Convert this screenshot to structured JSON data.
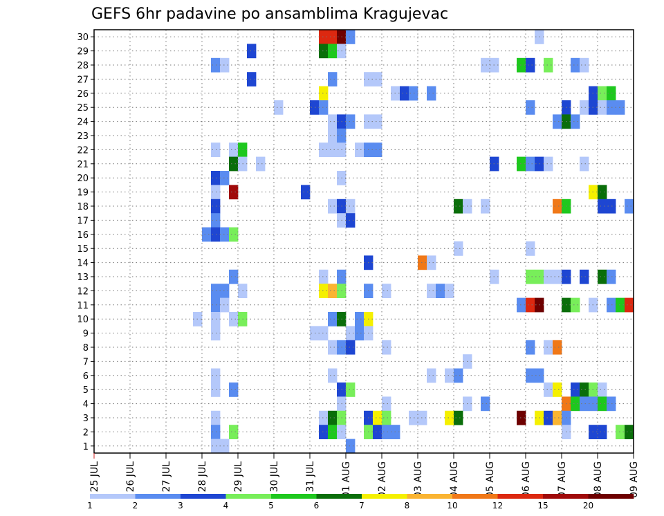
{
  "chart_data": {
    "type": "heatmap",
    "title": "GEFS 6hr padavine po ansamblima Kragujevac",
    "x_tick_labels": [
      "25 JUL",
      "26 JUL",
      "27 JUL",
      "28 JUL",
      "29 JUL",
      "30 JUL",
      "31 JUL",
      "01 AUG",
      "02 AUG",
      "03 AUG",
      "04 AUG",
      "05 AUG",
      "06 AUG",
      "07 AUG",
      "08 AUG",
      "09 AUG"
    ],
    "y_tick_labels": [
      "1",
      "2",
      "3",
      "4",
      "5",
      "6",
      "7",
      "8",
      "9",
      "10",
      "11",
      "12",
      "13",
      "14",
      "15",
      "16",
      "17",
      "18",
      "19",
      "20",
      "21",
      "22",
      "23",
      "24",
      "25",
      "26",
      "27",
      "28",
      "29",
      "30"
    ],
    "x_range_days": [
      0,
      15
    ],
    "y_range_members": [
      0,
      30
    ],
    "steps_per_day": 4,
    "grid": true,
    "colorbar": {
      "labels": [
        "1",
        "2",
        "3",
        "4",
        "5",
        "6",
        "7",
        "8",
        "10",
        "12",
        "15",
        "20"
      ],
      "colors": [
        "#b4c8fa",
        "#5a8cf0",
        "#1e46d2",
        "#78ee5a",
        "#1ec81e",
        "#0a6e0a",
        "#f5f000",
        "#fab432",
        "#f07818",
        "#dc2810",
        "#a00a0a",
        "#6e0000"
      ]
    },
    "cells": [
      {
        "m": 30,
        "t": 25,
        "c": 9
      },
      {
        "m": 30,
        "t": 26,
        "c": 9
      },
      {
        "m": 30,
        "t": 27,
        "c": 11
      },
      {
        "m": 30,
        "t": 28,
        "c": 1
      },
      {
        "m": 30,
        "t": 49,
        "c": 0
      },
      {
        "m": 29,
        "t": 17,
        "c": 2
      },
      {
        "m": 29,
        "t": 25,
        "c": 5
      },
      {
        "m": 29,
        "t": 26,
        "c": 4
      },
      {
        "m": 29,
        "t": 27,
        "c": 0
      },
      {
        "m": 28,
        "t": 13,
        "c": 1
      },
      {
        "m": 28,
        "t": 14,
        "c": 0
      },
      {
        "m": 28,
        "t": 43,
        "c": 0
      },
      {
        "m": 28,
        "t": 44,
        "c": 0
      },
      {
        "m": 28,
        "t": 47,
        "c": 4
      },
      {
        "m": 28,
        "t": 48,
        "c": 2
      },
      {
        "m": 28,
        "t": 50,
        "c": 3
      },
      {
        "m": 28,
        "t": 53,
        "c": 1
      },
      {
        "m": 28,
        "t": 54,
        "c": 0
      },
      {
        "m": 27,
        "t": 17,
        "c": 2
      },
      {
        "m": 27,
        "t": 26,
        "c": 1
      },
      {
        "m": 27,
        "t": 30,
        "c": 0
      },
      {
        "m": 27,
        "t": 31,
        "c": 0
      },
      {
        "m": 26,
        "t": 25,
        "c": 6
      },
      {
        "m": 26,
        "t": 33,
        "c": 0
      },
      {
        "m": 26,
        "t": 34,
        "c": 2
      },
      {
        "m": 26,
        "t": 35,
        "c": 1
      },
      {
        "m": 26,
        "t": 37,
        "c": 1
      },
      {
        "m": 26,
        "t": 55,
        "c": 2
      },
      {
        "m": 26,
        "t": 56,
        "c": 3
      },
      {
        "m": 26,
        "t": 57,
        "c": 4
      },
      {
        "m": 25,
        "t": 20,
        "c": 0
      },
      {
        "m": 25,
        "t": 24,
        "c": 2
      },
      {
        "m": 25,
        "t": 25,
        "c": 1
      },
      {
        "m": 25,
        "t": 48,
        "c": 1
      },
      {
        "m": 25,
        "t": 52,
        "c": 2
      },
      {
        "m": 25,
        "t": 54,
        "c": 0
      },
      {
        "m": 25,
        "t": 55,
        "c": 2
      },
      {
        "m": 25,
        "t": 56,
        "c": 0
      },
      {
        "m": 25,
        "t": 57,
        "c": 1
      },
      {
        "m": 25,
        "t": 58,
        "c": 1
      },
      {
        "m": 24,
        "t": 26,
        "c": 0
      },
      {
        "m": 24,
        "t": 27,
        "c": 2
      },
      {
        "m": 24,
        "t": 28,
        "c": 1
      },
      {
        "m": 24,
        "t": 30,
        "c": 0
      },
      {
        "m": 24,
        "t": 31,
        "c": 0
      },
      {
        "m": 24,
        "t": 51,
        "c": 1
      },
      {
        "m": 24,
        "t": 52,
        "c": 5
      },
      {
        "m": 24,
        "t": 53,
        "c": 1
      },
      {
        "m": 23,
        "t": 26,
        "c": 0
      },
      {
        "m": 23,
        "t": 27,
        "c": 1
      },
      {
        "m": 22,
        "t": 13,
        "c": 0
      },
      {
        "m": 22,
        "t": 15,
        "c": 0
      },
      {
        "m": 22,
        "t": 16,
        "c": 4
      },
      {
        "m": 22,
        "t": 25,
        "c": 0
      },
      {
        "m": 22,
        "t": 26,
        "c": 0
      },
      {
        "m": 22,
        "t": 27,
        "c": 0
      },
      {
        "m": 22,
        "t": 29,
        "c": 0
      },
      {
        "m": 22,
        "t": 30,
        "c": 1
      },
      {
        "m": 22,
        "t": 31,
        "c": 1
      },
      {
        "m": 21,
        "t": 15,
        "c": 5
      },
      {
        "m": 21,
        "t": 16,
        "c": 0
      },
      {
        "m": 21,
        "t": 18,
        "c": 0
      },
      {
        "m": 21,
        "t": 44,
        "c": 2
      },
      {
        "m": 21,
        "t": 47,
        "c": 4
      },
      {
        "m": 21,
        "t": 48,
        "c": 1
      },
      {
        "m": 21,
        "t": 49,
        "c": 2
      },
      {
        "m": 21,
        "t": 50,
        "c": 0
      },
      {
        "m": 21,
        "t": 54,
        "c": 0
      },
      {
        "m": 20,
        "t": 13,
        "c": 2
      },
      {
        "m": 20,
        "t": 14,
        "c": 1
      },
      {
        "m": 20,
        "t": 27,
        "c": 0
      },
      {
        "m": 19,
        "t": 13,
        "c": 0
      },
      {
        "m": 19,
        "t": 15,
        "c": 10
      },
      {
        "m": 19,
        "t": 23,
        "c": 2
      },
      {
        "m": 19,
        "t": 55,
        "c": 6
      },
      {
        "m": 19,
        "t": 56,
        "c": 5
      },
      {
        "m": 18,
        "t": 13,
        "c": 2
      },
      {
        "m": 18,
        "t": 26,
        "c": 0
      },
      {
        "m": 18,
        "t": 27,
        "c": 2
      },
      {
        "m": 18,
        "t": 28,
        "c": 0
      },
      {
        "m": 18,
        "t": 40,
        "c": 5
      },
      {
        "m": 18,
        "t": 41,
        "c": 0
      },
      {
        "m": 18,
        "t": 43,
        "c": 0
      },
      {
        "m": 18,
        "t": 51,
        "c": 8
      },
      {
        "m": 18,
        "t": 52,
        "c": 4
      },
      {
        "m": 18,
        "t": 56,
        "c": 2
      },
      {
        "m": 18,
        "t": 57,
        "c": 2
      },
      {
        "m": 18,
        "t": 59,
        "c": 1
      },
      {
        "m": 17,
        "t": 13,
        "c": 1
      },
      {
        "m": 17,
        "t": 27,
        "c": 0
      },
      {
        "m": 17,
        "t": 28,
        "c": 2
      },
      {
        "m": 16,
        "t": 12,
        "c": 1
      },
      {
        "m": 16,
        "t": 13,
        "c": 2
      },
      {
        "m": 16,
        "t": 14,
        "c": 1
      },
      {
        "m": 16,
        "t": 15,
        "c": 3
      },
      {
        "m": 15,
        "t": 40,
        "c": 0
      },
      {
        "m": 15,
        "t": 48,
        "c": 0
      },
      {
        "m": 14,
        "t": 30,
        "c": 2
      },
      {
        "m": 14,
        "t": 36,
        "c": 8
      },
      {
        "m": 14,
        "t": 37,
        "c": 0
      },
      {
        "m": 13,
        "t": 15,
        "c": 1
      },
      {
        "m": 13,
        "t": 25,
        "c": 0
      },
      {
        "m": 13,
        "t": 27,
        "c": 1
      },
      {
        "m": 13,
        "t": 44,
        "c": 0
      },
      {
        "m": 13,
        "t": 48,
        "c": 3
      },
      {
        "m": 13,
        "t": 49,
        "c": 3
      },
      {
        "m": 13,
        "t": 50,
        "c": 0
      },
      {
        "m": 13,
        "t": 51,
        "c": 0
      },
      {
        "m": 13,
        "t": 52,
        "c": 2
      },
      {
        "m": 13,
        "t": 54,
        "c": 2
      },
      {
        "m": 13,
        "t": 56,
        "c": 5
      },
      {
        "m": 13,
        "t": 57,
        "c": 1
      },
      {
        "m": 12,
        "t": 13,
        "c": 1
      },
      {
        "m": 12,
        "t": 14,
        "c": 1
      },
      {
        "m": 12,
        "t": 16,
        "c": 0
      },
      {
        "m": 12,
        "t": 25,
        "c": 6
      },
      {
        "m": 12,
        "t": 26,
        "c": 7
      },
      {
        "m": 12,
        "t": 27,
        "c": 3
      },
      {
        "m": 12,
        "t": 30,
        "c": 1
      },
      {
        "m": 12,
        "t": 32,
        "c": 0
      },
      {
        "m": 12,
        "t": 37,
        "c": 0
      },
      {
        "m": 12,
        "t": 38,
        "c": 1
      },
      {
        "m": 12,
        "t": 39,
        "c": 0
      },
      {
        "m": 11,
        "t": 13,
        "c": 1
      },
      {
        "m": 11,
        "t": 14,
        "c": 0
      },
      {
        "m": 11,
        "t": 47,
        "c": 1
      },
      {
        "m": 11,
        "t": 48,
        "c": 9
      },
      {
        "m": 11,
        "t": 49,
        "c": 11
      },
      {
        "m": 11,
        "t": 52,
        "c": 5
      },
      {
        "m": 11,
        "t": 53,
        "c": 3
      },
      {
        "m": 11,
        "t": 55,
        "c": 0
      },
      {
        "m": 11,
        "t": 57,
        "c": 1
      },
      {
        "m": 11,
        "t": 58,
        "c": 4
      },
      {
        "m": 11,
        "t": 59,
        "c": 9
      },
      {
        "m": 10,
        "t": 11,
        "c": 0
      },
      {
        "m": 10,
        "t": 13,
        "c": 0
      },
      {
        "m": 10,
        "t": 15,
        "c": 0
      },
      {
        "m": 10,
        "t": 16,
        "c": 3
      },
      {
        "m": 10,
        "t": 26,
        "c": 1
      },
      {
        "m": 10,
        "t": 27,
        "c": 5
      },
      {
        "m": 10,
        "t": 29,
        "c": 1
      },
      {
        "m": 10,
        "t": 30,
        "c": 6
      },
      {
        "m": 9,
        "t": 13,
        "c": 0
      },
      {
        "m": 9,
        "t": 24,
        "c": 0
      },
      {
        "m": 9,
        "t": 25,
        "c": 0
      },
      {
        "m": 9,
        "t": 28,
        "c": 0
      },
      {
        "m": 9,
        "t": 29,
        "c": 1
      },
      {
        "m": 9,
        "t": 30,
        "c": 0
      },
      {
        "m": 8,
        "t": 26,
        "c": 0
      },
      {
        "m": 8,
        "t": 27,
        "c": 1
      },
      {
        "m": 8,
        "t": 28,
        "c": 2
      },
      {
        "m": 8,
        "t": 32,
        "c": 0
      },
      {
        "m": 8,
        "t": 48,
        "c": 1
      },
      {
        "m": 8,
        "t": 50,
        "c": 0
      },
      {
        "m": 8,
        "t": 51,
        "c": 8
      },
      {
        "m": 7,
        "t": 41,
        "c": 0
      },
      {
        "m": 6,
        "t": 13,
        "c": 0
      },
      {
        "m": 6,
        "t": 26,
        "c": 0
      },
      {
        "m": 6,
        "t": 37,
        "c": 0
      },
      {
        "m": 6,
        "t": 39,
        "c": 0
      },
      {
        "m": 6,
        "t": 40,
        "c": 1
      },
      {
        "m": 6,
        "t": 48,
        "c": 1
      },
      {
        "m": 6,
        "t": 49,
        "c": 1
      },
      {
        "m": 5,
        "t": 13,
        "c": 0
      },
      {
        "m": 5,
        "t": 15,
        "c": 1
      },
      {
        "m": 5,
        "t": 27,
        "c": 2
      },
      {
        "m": 5,
        "t": 28,
        "c": 3
      },
      {
        "m": 5,
        "t": 50,
        "c": 0
      },
      {
        "m": 5,
        "t": 51,
        "c": 6
      },
      {
        "m": 5,
        "t": 53,
        "c": 2
      },
      {
        "m": 5,
        "t": 54,
        "c": 5
      },
      {
        "m": 5,
        "t": 55,
        "c": 3
      },
      {
        "m": 5,
        "t": 56,
        "c": 0
      },
      {
        "m": 4,
        "t": 27,
        "c": 0
      },
      {
        "m": 4,
        "t": 32,
        "c": 0
      },
      {
        "m": 4,
        "t": 41,
        "c": 0
      },
      {
        "m": 4,
        "t": 43,
        "c": 1
      },
      {
        "m": 4,
        "t": 52,
        "c": 8
      },
      {
        "m": 4,
        "t": 53,
        "c": 4
      },
      {
        "m": 4,
        "t": 54,
        "c": 1
      },
      {
        "m": 4,
        "t": 55,
        "c": 1
      },
      {
        "m": 4,
        "t": 56,
        "c": 4
      },
      {
        "m": 4,
        "t": 57,
        "c": 1
      },
      {
        "m": 3,
        "t": 13,
        "c": 0
      },
      {
        "m": 3,
        "t": 25,
        "c": 0
      },
      {
        "m": 3,
        "t": 26,
        "c": 5
      },
      {
        "m": 3,
        "t": 27,
        "c": 3
      },
      {
        "m": 3,
        "t": 30,
        "c": 2
      },
      {
        "m": 3,
        "t": 31,
        "c": 6
      },
      {
        "m": 3,
        "t": 32,
        "c": 3
      },
      {
        "m": 3,
        "t": 35,
        "c": 0
      },
      {
        "m": 3,
        "t": 36,
        "c": 0
      },
      {
        "m": 3,
        "t": 39,
        "c": 6
      },
      {
        "m": 3,
        "t": 40,
        "c": 5
      },
      {
        "m": 3,
        "t": 47,
        "c": 11
      },
      {
        "m": 3,
        "t": 49,
        "c": 6
      },
      {
        "m": 3,
        "t": 50,
        "c": 2
      },
      {
        "m": 3,
        "t": 51,
        "c": 7
      },
      {
        "m": 3,
        "t": 52,
        "c": 1
      },
      {
        "m": 2,
        "t": 13,
        "c": 1
      },
      {
        "m": 2,
        "t": 15,
        "c": 3
      },
      {
        "m": 2,
        "t": 25,
        "c": 2
      },
      {
        "m": 2,
        "t": 26,
        "c": 4
      },
      {
        "m": 2,
        "t": 27,
        "c": 0
      },
      {
        "m": 2,
        "t": 30,
        "c": 3
      },
      {
        "m": 2,
        "t": 31,
        "c": 2
      },
      {
        "m": 2,
        "t": 32,
        "c": 1
      },
      {
        "m": 2,
        "t": 33,
        "c": 1
      },
      {
        "m": 2,
        "t": 52,
        "c": 0
      },
      {
        "m": 2,
        "t": 55,
        "c": 2
      },
      {
        "m": 2,
        "t": 56,
        "c": 2
      },
      {
        "m": 2,
        "t": 58,
        "c": 3
      },
      {
        "m": 2,
        "t": 59,
        "c": 5
      },
      {
        "m": 1,
        "t": 13,
        "c": 0
      },
      {
        "m": 1,
        "t": 14,
        "c": 0
      },
      {
        "m": 1,
        "t": 28,
        "c": 1
      }
    ]
  }
}
